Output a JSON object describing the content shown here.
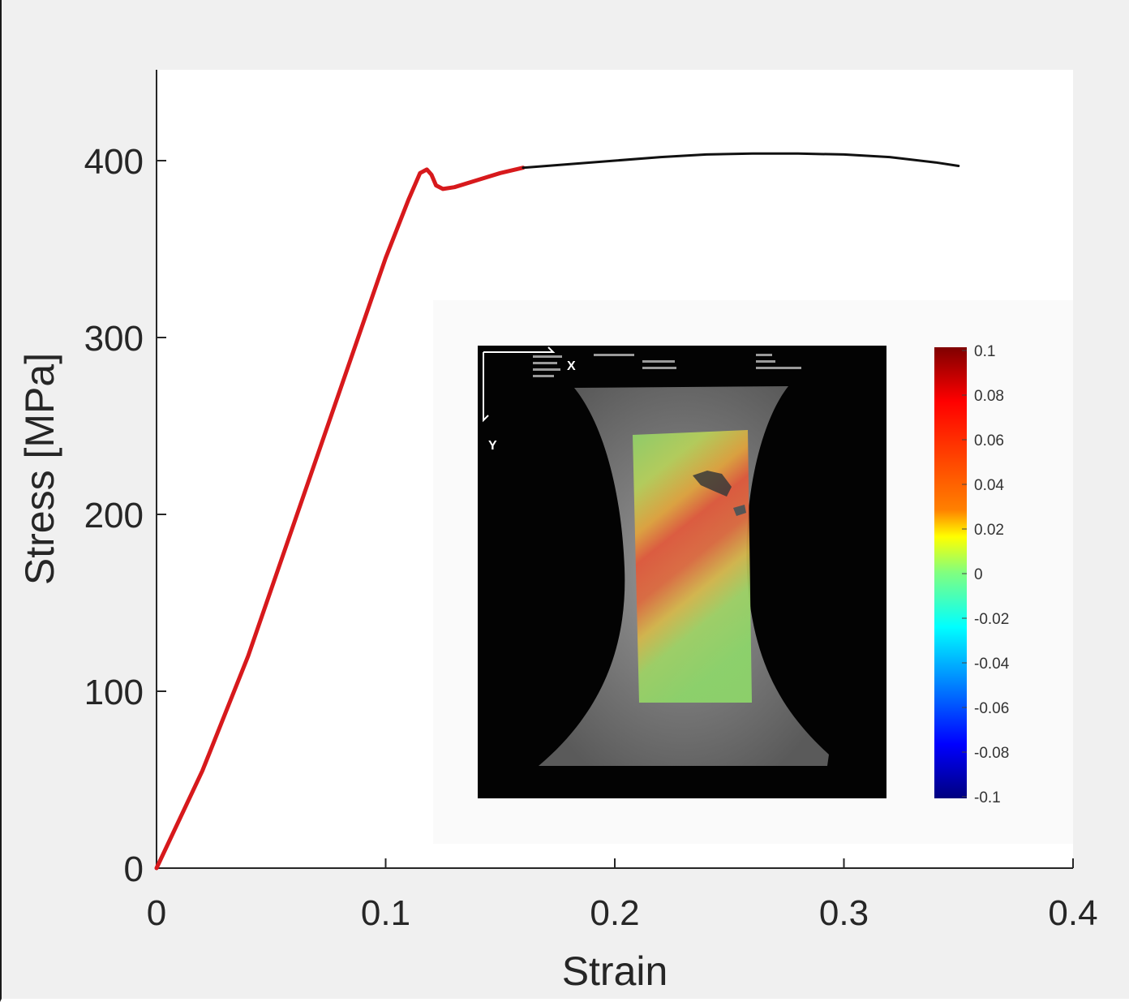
{
  "chart_data": {
    "type": "line",
    "title": "",
    "xlabel": "Strain",
    "ylabel": "Stress [MPa]",
    "xlim": [
      0,
      0.4
    ],
    "ylim": [
      0,
      450
    ],
    "x_ticks": [
      "0",
      "0.1",
      "0.2",
      "0.3",
      "0.4"
    ],
    "y_ticks": [
      "0",
      "100",
      "200",
      "300",
      "400"
    ],
    "grid": false,
    "series": [
      {
        "color": "#d7191c",
        "x": [
          0,
          0.02,
          0.04,
          0.06,
          0.08,
          0.1,
          0.11,
          0.115,
          0.118,
          0.12,
          0.122,
          0.125,
          0.13,
          0.14,
          0.15,
          0.16
        ],
        "y": [
          0,
          55,
          120,
          195,
          270,
          345,
          378,
          393,
          395,
          392,
          386,
          384,
          385,
          389,
          393,
          396
        ]
      },
      {
        "color": "#111111",
        "x": [
          0.16,
          0.18,
          0.2,
          0.22,
          0.24,
          0.26,
          0.28,
          0.3,
          0.32,
          0.34,
          0.35
        ],
        "y": [
          396,
          398,
          400,
          402,
          403.5,
          404,
          404,
          403.5,
          402,
          399,
          397
        ]
      }
    ]
  },
  "inset": {
    "overlay_text": [
      "X",
      "Y"
    ],
    "colorbar": {
      "ticks": [
        "0.1",
        "0.08",
        "0.06",
        "0.04",
        "0.02",
        "0",
        "-0.02",
        "-0.04",
        "-0.06",
        "-0.08",
        "-0.1"
      ],
      "colors": [
        "#7f0000",
        "#ff0000",
        "#ff8000",
        "#ffff00",
        "#00ffff",
        "#0000ff",
        "#00007f"
      ]
    }
  }
}
